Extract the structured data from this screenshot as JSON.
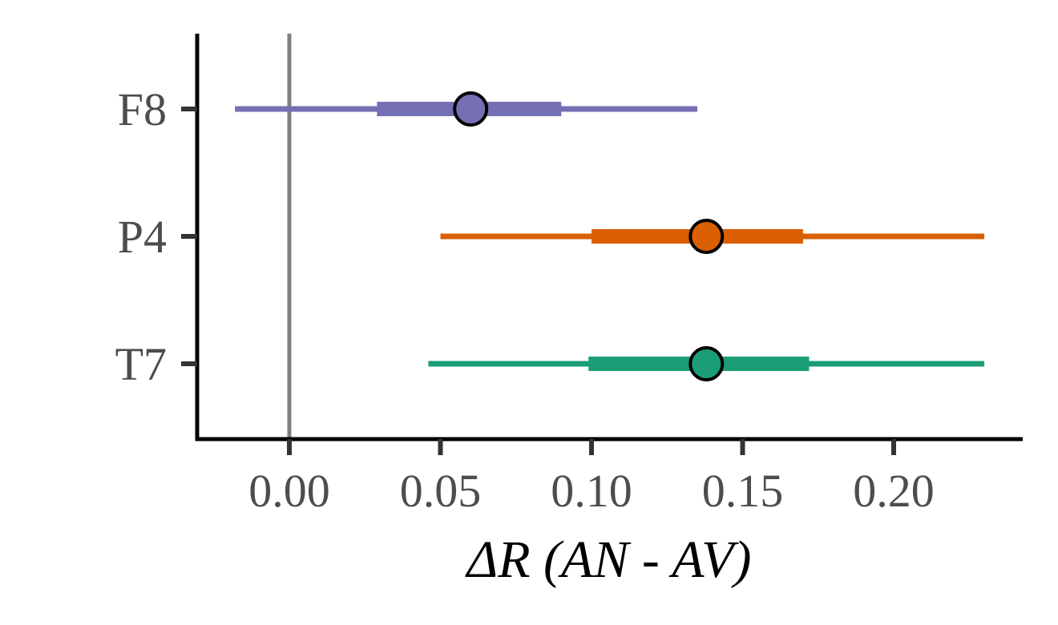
{
  "chart_data": {
    "type": "scatter",
    "xlabel": "ΔR (AN - AV)",
    "xlim": [
      -0.03,
      0.245
    ],
    "xticks": [
      {
        "value": 0.0,
        "label": "0.00"
      },
      {
        "value": 0.05,
        "label": "0.05"
      },
      {
        "value": 0.1,
        "label": "0.10"
      },
      {
        "value": 0.15,
        "label": "0.15"
      },
      {
        "value": 0.2,
        "label": "0.20"
      }
    ],
    "reference_line_x": 0.0,
    "categories": [
      "F8",
      "P4",
      "T7"
    ],
    "series": [
      {
        "category": "F8",
        "point": 0.06,
        "inner": [
          0.029,
          0.09
        ],
        "outer": [
          -0.018,
          0.135
        ],
        "color": "#7570b3"
      },
      {
        "category": "P4",
        "point": 0.138,
        "inner": [
          0.1,
          0.17
        ],
        "outer": [
          0.05,
          0.23
        ],
        "color": "#d95f02"
      },
      {
        "category": "T7",
        "point": 0.138,
        "inner": [
          0.099,
          0.172
        ],
        "outer": [
          0.046,
          0.23
        ],
        "color": "#1b9e77"
      }
    ],
    "grid": false,
    "legend": "none"
  }
}
